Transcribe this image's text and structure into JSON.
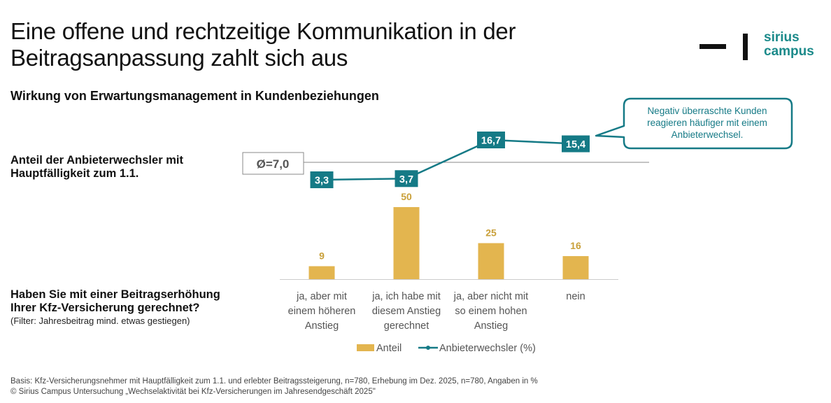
{
  "header": {
    "title_line1": "Eine offene und rechtzeitige Kommunikation in der",
    "title_line2": "Beitragsanpassung zahlt sich aus",
    "logo": {
      "line1": "sirius",
      "line2": "campus",
      "icon": "dash-bar-logo-icon"
    },
    "subtitle": "Wirkung von Erwartungsmanagement in Kundenbeziehungen"
  },
  "labels": {
    "line_label_1": "Anteil der Anbieterwechsler mit",
    "line_label_2": "Hauptfälligkeit zum 1.1.",
    "bar_label_1": "Haben Sie mit einer Beitragserhöhung",
    "bar_label_2": "Ihrer Kfz-Versicherung gerechnet?",
    "bar_filter": "(Filter: Jahresbeitrag mind. etwas gestiegen)"
  },
  "callout": {
    "lines": [
      "Negativ überraschte Kunden",
      "reagieren häufiger mit einem",
      "Anbieterwechsel."
    ]
  },
  "footer": {
    "line1": "Basis: Kfz-Versicherungsnehmer mit Hauptfälligkeit zum 1.1. und erlebter Beitragssteigerung, n=780, Erhebung im Dez. 2025, n=780, Angaben in %",
    "line2": "© Sirius Campus Untersuchung „Wechselaktivität bei Kfz-Versicherungen im Jahresendgeschäft 2025\""
  },
  "colors": {
    "bar": "#e3b54f",
    "bar_label": "#c9a03a",
    "line": "#157a86",
    "axis": "#cccccc",
    "avg_line": "#888888",
    "text_gray": "#555555"
  },
  "chart_data": {
    "type": "bar+line",
    "categories": [
      [
        "ja, aber mit",
        "einem höheren",
        "Anstieg"
      ],
      [
        "ja, ich habe mit",
        "diesem Anstieg",
        "gerechnet"
      ],
      [
        "ja, aber nicht mit",
        "so einem hohen",
        "Anstieg"
      ],
      [
        "nein"
      ]
    ],
    "series": [
      {
        "name": "Anteil",
        "type": "bar",
        "values": [
          9,
          50,
          25,
          16
        ],
        "labels": [
          "9",
          "50",
          "25",
          "16"
        ]
      },
      {
        "name": "Anbieterwechsler (%)",
        "type": "line",
        "values": [
          3.3,
          3.7,
          16.7,
          15.4
        ],
        "labels": [
          "3,3",
          "3,7",
          "16,7",
          "15,4"
        ]
      }
    ],
    "reference_line": {
      "value": 7.0,
      "label": "Ø=7,0"
    },
    "legend": {
      "position": "bottom",
      "entries": [
        "Anteil",
        "Anbieterwechsler (%)"
      ]
    },
    "grid": false
  }
}
